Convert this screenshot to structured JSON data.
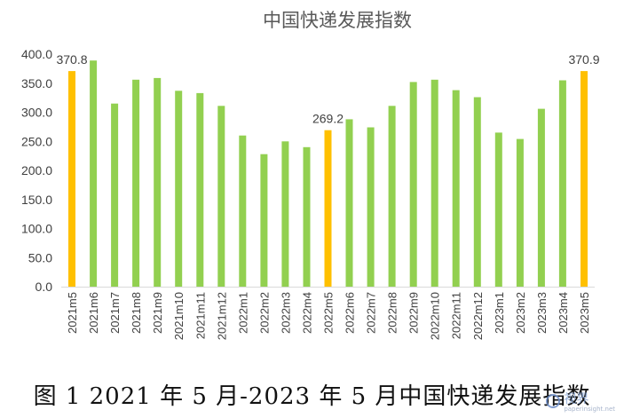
{
  "chart_data": {
    "type": "bar",
    "title": "中国快递发展指数",
    "categories": [
      "2021m5",
      "2021m6",
      "2021m7",
      "2021m8",
      "2021m9",
      "2021m10",
      "2021m11",
      "2021m12",
      "2022m1",
      "2022m2",
      "2022m3",
      "2022m4",
      "2022m5",
      "2022m6",
      "2022m7",
      "2022m8",
      "2022m9",
      "2022m10",
      "2022m11",
      "2022m12",
      "2023m1",
      "2023m2",
      "2023m3",
      "2023m4",
      "2023m5"
    ],
    "values": [
      370.8,
      389,
      315,
      356,
      359,
      337,
      333,
      311,
      260,
      228,
      250,
      240,
      269.2,
      288,
      274,
      311,
      352,
      356,
      338,
      326,
      265,
      254,
      306,
      355,
      370.9
    ],
    "highlight_indices": [
      0,
      12,
      24
    ],
    "data_labels": [
      {
        "index": 0,
        "text": "370.8"
      },
      {
        "index": 12,
        "text": "269.2"
      },
      {
        "index": 24,
        "text": "370.9"
      }
    ],
    "yticks": [
      "0.0",
      "50.0",
      "100.0",
      "150.0",
      "200.0",
      "250.0",
      "300.0",
      "350.0",
      "400.0"
    ],
    "ylim": [
      0,
      400
    ],
    "colors": {
      "normal": "#92d050",
      "highlight": "#ffc000",
      "title": "#595959",
      "tick": "#404040",
      "axis": "#d9d9d9"
    },
    "grid": false
  },
  "caption": "图 1 2021 年 5 月-2023 年 5 月中国快递发展指数",
  "watermark": {
    "icon": "circle-logo-icon",
    "text": "视界",
    "sub": "paperinsight.net"
  }
}
